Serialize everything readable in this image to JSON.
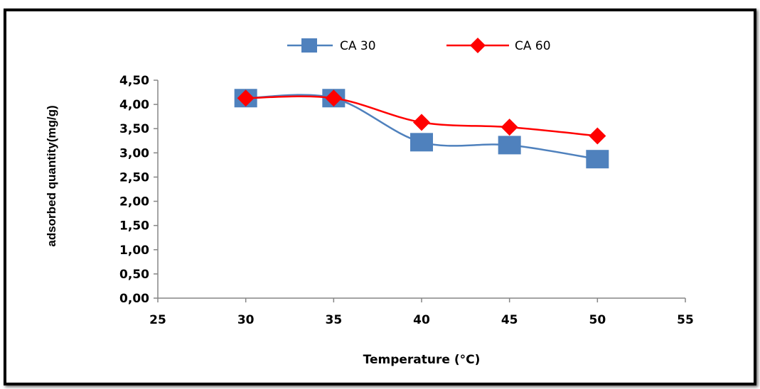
{
  "chart_data": {
    "type": "line",
    "title": "",
    "xlabel": "Temperature (°C)",
    "ylabel": "adsorbed quantity(mg/g)",
    "xlim": [
      25,
      55
    ],
    "ylim": [
      0,
      4.5
    ],
    "xticks": [
      "25",
      "30",
      "35",
      "40",
      "45",
      "50",
      "55"
    ],
    "yticks": [
      "0,00",
      "0,50",
      "1,00",
      "1,50",
      "2,00",
      "2,50",
      "3,00",
      "3,50",
      "4,00",
      "4,50"
    ],
    "grid": false,
    "legend_position": "top",
    "x": [
      30,
      35,
      40,
      45,
      50
    ],
    "series": [
      {
        "name": "CA 30",
        "values": [
          4.13,
          4.13,
          3.22,
          3.16,
          2.87
        ],
        "color": "#4f81bd",
        "marker": "square"
      },
      {
        "name": "CA 60",
        "values": [
          4.13,
          4.13,
          3.63,
          3.53,
          3.35
        ],
        "color": "#ff0000",
        "marker": "diamond"
      }
    ]
  }
}
